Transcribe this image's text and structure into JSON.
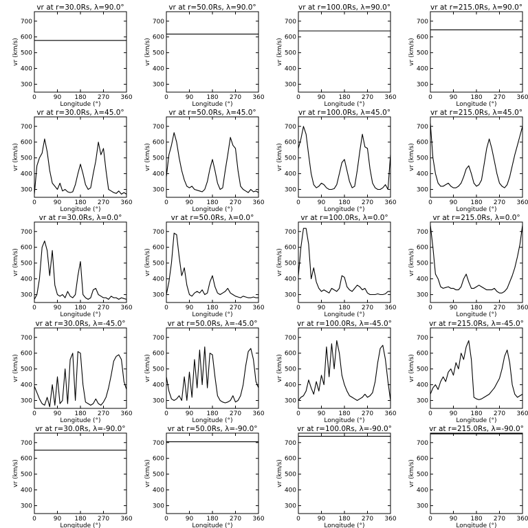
{
  "chart_data": {
    "type": "line",
    "layout": {
      "rows": 5,
      "cols": 4
    },
    "xlabel": "Longitude (°)",
    "ylabel": "vr (km/s)",
    "xlim": [
      0,
      360
    ],
    "ylim": [
      250,
      760
    ],
    "xticks": [
      0,
      90,
      180,
      270,
      360
    ],
    "yticks": [
      300,
      400,
      500,
      600,
      700
    ],
    "panels": [
      {
        "title": "vr at r=30.0Rs, λ=90.0°",
        "x": [
          0,
          360
        ],
        "y": [
          578,
          578
        ]
      },
      {
        "title": "vr at r=50.0Rs, λ=90.0°",
        "x": [
          0,
          360
        ],
        "y": [
          618,
          618
        ]
      },
      {
        "title": "vr at r=100.0Rs, λ=90.0°",
        "x": [
          0,
          360
        ],
        "y": [
          638,
          638
        ]
      },
      {
        "title": "vr at r=215.0Rs, λ=90.0°",
        "x": [
          0,
          360
        ],
        "y": [
          645,
          645
        ]
      },
      {
        "title": "vr at r=30.0Rs, λ=45.0°",
        "x": [
          0,
          10,
          20,
          30,
          40,
          50,
          60,
          70,
          80,
          90,
          100,
          110,
          120,
          130,
          140,
          150,
          160,
          170,
          180,
          190,
          200,
          210,
          220,
          230,
          240,
          250,
          260,
          270,
          280,
          290,
          300,
          310,
          320,
          330,
          340,
          350,
          360
        ],
        "y": [
          270,
          450,
          500,
          530,
          620,
          540,
          420,
          340,
          320,
          300,
          340,
          290,
          300,
          285,
          280,
          285,
          330,
          400,
          460,
          400,
          330,
          300,
          310,
          400,
          480,
          600,
          520,
          560,
          420,
          300,
          290,
          280,
          275,
          290,
          270,
          280,
          270
        ]
      },
      {
        "title": "vr at r=50.0Rs, λ=45.0°",
        "x": [
          0,
          10,
          20,
          30,
          40,
          50,
          60,
          70,
          80,
          90,
          100,
          110,
          120,
          130,
          140,
          150,
          160,
          170,
          180,
          190,
          200,
          210,
          220,
          230,
          240,
          250,
          260,
          270,
          280,
          290,
          300,
          310,
          320,
          330,
          340,
          350,
          360
        ],
        "y": [
          380,
          520,
          580,
          660,
          600,
          500,
          420,
          360,
          320,
          310,
          320,
          300,
          295,
          290,
          285,
          300,
          350,
          430,
          490,
          420,
          340,
          300,
          310,
          420,
          520,
          630,
          580,
          560,
          420,
          320,
          300,
          290,
          280,
          300,
          285,
          290,
          280
        ]
      },
      {
        "title": "vr at r=100.0Rs, λ=45.0°",
        "x": [
          0,
          10,
          20,
          30,
          40,
          50,
          60,
          70,
          80,
          90,
          100,
          110,
          120,
          130,
          140,
          150,
          160,
          170,
          180,
          190,
          200,
          210,
          220,
          230,
          240,
          250,
          260,
          270,
          280,
          290,
          300,
          310,
          320,
          330,
          340,
          350,
          360
        ],
        "y": [
          560,
          620,
          700,
          650,
          520,
          400,
          330,
          310,
          320,
          340,
          330,
          310,
          300,
          300,
          305,
          330,
          400,
          470,
          490,
          420,
          350,
          310,
          320,
          420,
          540,
          650,
          570,
          560,
          430,
          340,
          310,
          300,
          300,
          310,
          330,
          300,
          520
        ]
      },
      {
        "title": "vr at r=215.0Rs, λ=45.0°",
        "x": [
          0,
          10,
          20,
          30,
          40,
          50,
          60,
          70,
          80,
          90,
          100,
          110,
          120,
          130,
          140,
          150,
          160,
          170,
          180,
          190,
          200,
          210,
          220,
          230,
          240,
          250,
          260,
          270,
          280,
          290,
          300,
          310,
          320,
          330,
          340,
          350,
          360
        ],
        "y": [
          720,
          500,
          400,
          340,
          320,
          320,
          330,
          340,
          320,
          310,
          310,
          320,
          340,
          380,
          430,
          450,
          400,
          340,
          320,
          330,
          360,
          460,
          560,
          620,
          560,
          480,
          400,
          340,
          320,
          310,
          330,
          380,
          450,
          520,
          580,
          640,
          700
        ]
      },
      {
        "title": "vr at r=30.0Rs, λ=0.0°",
        "x": [
          0,
          10,
          20,
          30,
          40,
          50,
          60,
          70,
          80,
          90,
          100,
          110,
          120,
          130,
          140,
          150,
          160,
          170,
          180,
          190,
          200,
          210,
          220,
          230,
          240,
          250,
          260,
          270,
          280,
          290,
          300,
          310,
          320,
          330,
          340,
          350,
          360
        ],
        "y": [
          270,
          300,
          400,
          600,
          640,
          580,
          420,
          580,
          360,
          300,
          290,
          300,
          280,
          320,
          290,
          280,
          300,
          420,
          510,
          300,
          280,
          270,
          280,
          330,
          340,
          300,
          290,
          280,
          280,
          270,
          290,
          280,
          280,
          270,
          280,
          275,
          270
        ]
      },
      {
        "title": "vr at r=50.0Rs, λ=0.0°",
        "x": [
          0,
          10,
          20,
          30,
          40,
          50,
          60,
          70,
          80,
          90,
          100,
          110,
          120,
          130,
          140,
          150,
          160,
          170,
          180,
          190,
          200,
          210,
          220,
          230,
          240,
          250,
          260,
          270,
          280,
          290,
          300,
          310,
          320,
          330,
          340,
          350,
          360
        ],
        "y": [
          300,
          380,
          500,
          690,
          680,
          540,
          420,
          470,
          360,
          300,
          290,
          310,
          320,
          310,
          330,
          300,
          310,
          380,
          420,
          350,
          310,
          300,
          310,
          320,
          340,
          310,
          300,
          290,
          285,
          280,
          290,
          285,
          280,
          280,
          285,
          280,
          280
        ]
      },
      {
        "title": "vr at r=100.0Rs, λ=0.0°",
        "x": [
          0,
          10,
          20,
          30,
          40,
          50,
          60,
          70,
          80,
          90,
          100,
          110,
          120,
          130,
          140,
          150,
          160,
          170,
          180,
          190,
          200,
          210,
          220,
          230,
          240,
          250,
          260,
          270,
          280,
          290,
          300,
          310,
          320,
          330,
          340,
          350,
          360
        ],
        "y": [
          420,
          600,
          720,
          720,
          620,
          400,
          470,
          380,
          340,
          320,
          330,
          320,
          310,
          340,
          330,
          320,
          340,
          420,
          410,
          350,
          330,
          320,
          340,
          360,
          350,
          330,
          340,
          310,
          300,
          300,
          300,
          305,
          300,
          300,
          305,
          320,
          320
        ]
      },
      {
        "title": "vr at r=215.0Rs, λ=0.0°",
        "x": [
          0,
          10,
          20,
          30,
          40,
          50,
          60,
          70,
          80,
          90,
          100,
          110,
          120,
          130,
          140,
          150,
          160,
          170,
          180,
          190,
          200,
          210,
          220,
          230,
          240,
          250,
          260,
          270,
          280,
          290,
          300,
          310,
          320,
          330,
          340,
          350,
          360
        ],
        "y": [
          740,
          600,
          430,
          400,
          350,
          340,
          345,
          350,
          340,
          340,
          330,
          330,
          350,
          400,
          430,
          380,
          340,
          340,
          350,
          360,
          350,
          340,
          330,
          330,
          330,
          340,
          320,
          310,
          310,
          320,
          340,
          380,
          420,
          470,
          540,
          620,
          740
        ]
      },
      {
        "title": "vr at r=30.0Rs, λ=-45.0°",
        "x": [
          0,
          10,
          20,
          30,
          40,
          50,
          60,
          70,
          80,
          90,
          100,
          110,
          120,
          130,
          140,
          150,
          160,
          170,
          180,
          190,
          200,
          210,
          220,
          230,
          240,
          250,
          260,
          270,
          280,
          290,
          300,
          310,
          320,
          330,
          340,
          350,
          360
        ],
        "y": [
          390,
          350,
          310,
          280,
          270,
          320,
          260,
          400,
          270,
          450,
          280,
          300,
          500,
          280,
          560,
          600,
          300,
          610,
          600,
          400,
          290,
          280,
          270,
          280,
          310,
          280,
          270,
          290,
          320,
          380,
          460,
          550,
          580,
          590,
          560,
          420,
          370
        ]
      },
      {
        "title": "vr at r=50.0Rs, λ=-45.0°",
        "x": [
          0,
          10,
          20,
          30,
          40,
          50,
          60,
          70,
          80,
          90,
          100,
          110,
          120,
          130,
          140,
          150,
          160,
          170,
          180,
          190,
          200,
          210,
          220,
          230,
          240,
          250,
          260,
          270,
          280,
          290,
          300,
          310,
          320,
          330,
          340,
          350,
          360
        ],
        "y": [
          450,
          360,
          310,
          300,
          310,
          330,
          300,
          450,
          300,
          480,
          320,
          560,
          380,
          620,
          400,
          640,
          380,
          600,
          590,
          450,
          330,
          300,
          290,
          285,
          290,
          300,
          330,
          290,
          300,
          330,
          400,
          520,
          610,
          630,
          560,
          420,
          380
        ]
      },
      {
        "title": "vr at r=100.0Rs, λ=-45.0°",
        "x": [
          0,
          10,
          20,
          30,
          40,
          50,
          60,
          70,
          80,
          90,
          100,
          110,
          120,
          130,
          140,
          150,
          160,
          170,
          180,
          190,
          200,
          210,
          220,
          230,
          240,
          250,
          260,
          270,
          280,
          290,
          300,
          310,
          320,
          330,
          340,
          350,
          360
        ],
        "y": [
          300,
          320,
          330,
          360,
          430,
          380,
          340,
          420,
          360,
          460,
          400,
          640,
          450,
          660,
          500,
          680,
          600,
          460,
          400,
          360,
          330,
          320,
          310,
          300,
          310,
          320,
          340,
          320,
          330,
          350,
          420,
          540,
          630,
          650,
          560,
          420,
          300
        ]
      },
      {
        "title": "vr at r=215.0Rs, λ=-45.0°",
        "x": [
          0,
          10,
          20,
          30,
          40,
          50,
          60,
          70,
          80,
          90,
          100,
          110,
          120,
          130,
          140,
          150,
          160,
          170,
          180,
          190,
          200,
          210,
          220,
          230,
          240,
          250,
          260,
          270,
          280,
          290,
          300,
          310,
          320,
          330,
          340,
          350,
          360
        ],
        "y": [
          340,
          380,
          400,
          370,
          420,
          450,
          420,
          480,
          500,
          460,
          540,
          500,
          600,
          560,
          640,
          680,
          560,
          320,
          310,
          305,
          310,
          320,
          330,
          340,
          360,
          380,
          410,
          440,
          500,
          580,
          620,
          540,
          400,
          340,
          320,
          330,
          340
        ]
      },
      {
        "title": "vr at r=30.0Rs, λ=-90.0°",
        "x": [
          0,
          360
        ],
        "y": [
          652,
          652
        ]
      },
      {
        "title": "vr at r=50.0Rs, λ=-90.0°",
        "x": [
          0,
          360
        ],
        "y": [
          705,
          705
        ]
      },
      {
        "title": "vr at r=100.0Rs, λ=-90.0°",
        "x": [
          0,
          360
        ],
        "y": [
          740,
          740
        ]
      },
      {
        "title": "vr at r=215.0Rs, λ=-90.0°",
        "x": [
          0,
          360
        ],
        "y": [
          755,
          755
        ]
      }
    ]
  }
}
